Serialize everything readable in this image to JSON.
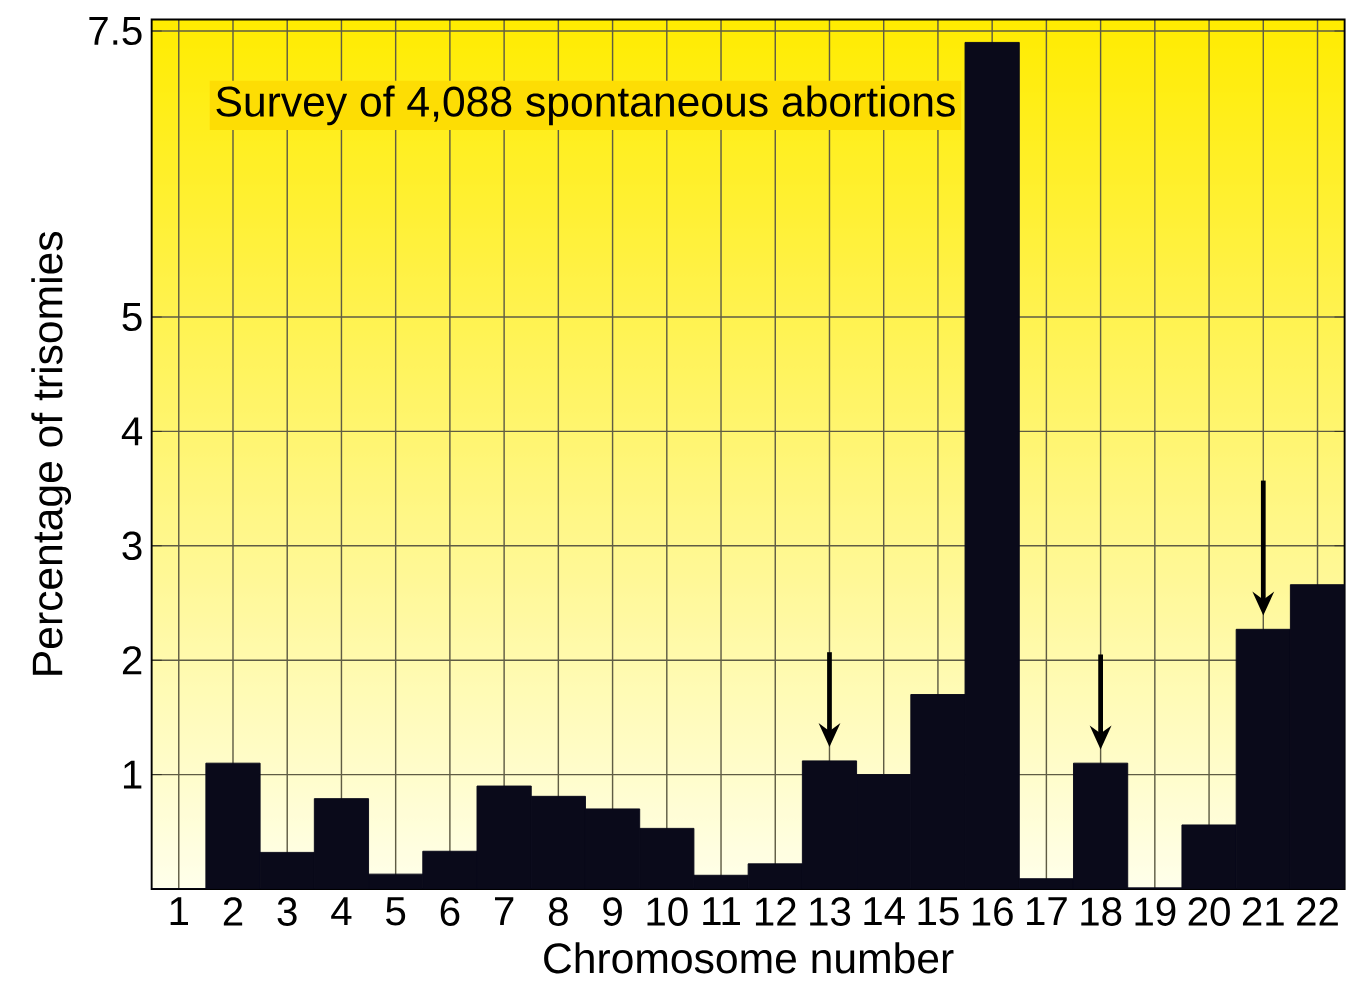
{
  "chart_data": {
    "type": "bar",
    "title": "Survey of 4,088 spontaneous abortions",
    "xlabel": "Chromosome number",
    "ylabel": "Percentage of trisomies",
    "categories": [
      "1",
      "2",
      "3",
      "4",
      "5",
      "6",
      "7",
      "8",
      "9",
      "10",
      "11",
      "12",
      "13",
      "14",
      "15",
      "16",
      "17",
      "18",
      "19",
      "20",
      "21",
      "22"
    ],
    "values": [
      0,
      1.1,
      0.32,
      0.79,
      0.13,
      0.33,
      0.9,
      0.81,
      0.7,
      0.53,
      0.12,
      0.22,
      1.12,
      1.0,
      1.7,
      7.4,
      0.09,
      1.1,
      0.01,
      0.56,
      2.27,
      2.66
    ],
    "color": "#0a0a1a",
    "ylim": [
      0,
      7.6
    ],
    "yticks": [
      1,
      2,
      3,
      4,
      5,
      7.5
    ],
    "grid": true
  }
}
